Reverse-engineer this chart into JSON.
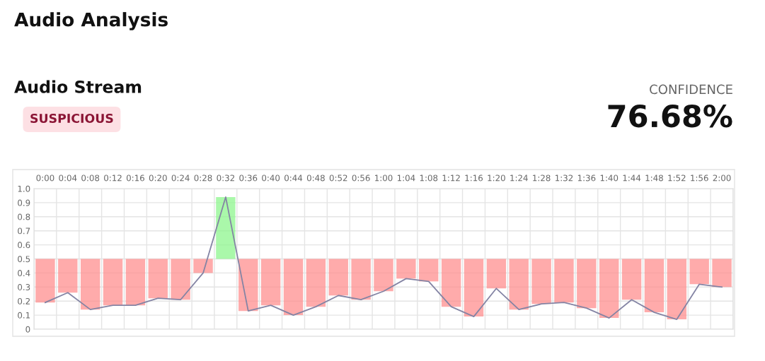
{
  "chart_data": {
    "type": "bar",
    "title": "Audio Analysis",
    "subtitle": "Audio Stream",
    "annotations": [
      "SUSPICIOUS",
      "CONFIDENCE",
      "76.68%"
    ],
    "categories": [
      "0:00",
      "0:04",
      "0:08",
      "0:12",
      "0:16",
      "0:20",
      "0:24",
      "0:28",
      "0:32",
      "0:36",
      "0:40",
      "0:44",
      "0:48",
      "0:52",
      "0:56",
      "1:00",
      "1:04",
      "1:08",
      "1:12",
      "1:16",
      "1:20",
      "1:24",
      "1:28",
      "1:32",
      "1:36",
      "1:40",
      "1:44",
      "1:48",
      "1:52",
      "1:56",
      "2:00"
    ],
    "series": [
      {
        "base": [
          0.5,
          0.5,
          0.5,
          0.5,
          0.5,
          0.5,
          0.5,
          0.5,
          0.5,
          0.5,
          0.5,
          0.5,
          0.5,
          0.5,
          0.5,
          0.5,
          0.5,
          0.5,
          0.5,
          0.5,
          0.5,
          0.5,
          0.5,
          0.5,
          0.5,
          0.5,
          0.5,
          0.5,
          0.5,
          0.5,
          0.5
        ],
        "values": [
          -0.31,
          -0.24,
          -0.36,
          -0.33,
          -0.33,
          -0.28,
          -0.29,
          -0.1,
          0.44,
          -0.37,
          -0.33,
          -0.4,
          -0.34,
          -0.26,
          -0.29,
          -0.23,
          -0.14,
          -0.16,
          -0.34,
          -0.41,
          -0.21,
          -0.36,
          -0.32,
          -0.31,
          -0.35,
          -0.42,
          -0.29,
          -0.38,
          -0.43,
          -0.18,
          -0.2
        ],
        "colors": [
          "#ff8f8f",
          "#ff8f8f",
          "#ff8f8f",
          "#ff8f8f",
          "#ff8f8f",
          "#ff8f8f",
          "#ff8f8f",
          "#ff8f8f",
          "#8ef58e",
          "#ff8f8f",
          "#ff8f8f",
          "#ff8f8f",
          "#ff8f8f",
          "#ff8f8f",
          "#ff8f8f",
          "#ff8f8f",
          "#ff8f8f",
          "#ff8f8f",
          "#ff8f8f",
          "#ff8f8f",
          "#ff8f8f",
          "#ff8f8f",
          "#ff8f8f",
          "#ff8f8f",
          "#ff8f8f",
          "#ff8f8f",
          "#ff8f8f",
          "#ff8f8f",
          "#ff8f8f",
          "#ff8f8f",
          "#ff8f8f"
        ]
      },
      {
        "type": "line",
        "color": "#8484a4",
        "values": [
          0.19,
          0.26,
          0.14,
          0.17,
          0.17,
          0.22,
          0.21,
          0.4,
          0.94,
          0.13,
          0.17,
          0.1,
          0.16,
          0.24,
          0.21,
          0.27,
          0.36,
          0.34,
          0.16,
          0.09,
          0.29,
          0.14,
          0.18,
          0.19,
          0.15,
          0.08,
          0.21,
          0.12,
          0.07,
          0.32,
          0.3
        ]
      }
    ],
    "ylim": [
      0,
      1.0
    ],
    "yticks": [
      0,
      0.1,
      0.2,
      0.3,
      0.4,
      0.5,
      0.6,
      0.7,
      0.8,
      0.9,
      {
        "value": 1.0,
        "label": "1.0"
      }
    ],
    "grid": true,
    "legend": false
  }
}
